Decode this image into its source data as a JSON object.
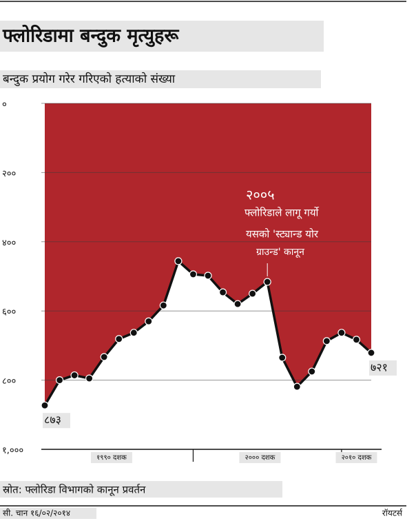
{
  "chart_data": {
    "type": "line",
    "title": "फ्लोरिडामा बन्दुक मृत्युहरू",
    "subtitle": "बन्दुक प्रयोग गरेर गरिएको हत्याको संख्या",
    "x": [
      1990,
      1991,
      1992,
      1993,
      1994,
      1995,
      1996,
      1997,
      1998,
      1999,
      2000,
      2001,
      2002,
      2003,
      2004,
      2005,
      2006,
      2007,
      2008,
      2009,
      2010,
      2011,
      2012
    ],
    "decade_labels": [
      "१९९० दशक",
      "२००० दशक",
      "२०१० दशक"
    ],
    "series": [
      {
        "name": "बन्दुक मृत्यु",
        "color": "#111111",
        "values": [
          873,
          800,
          786,
          795,
          733,
          681,
          663,
          630,
          584,
          456,
          494,
          498,
          546,
          580,
          550,
          516,
          735,
          819,
          775,
          687,
          663,
          683,
          721
        ],
        "value_labels": [
          "८७३",
          null,
          null,
          null,
          null,
          null,
          null,
          null,
          null,
          null,
          null,
          null,
          null,
          null,
          null,
          null,
          null,
          null,
          null,
          null,
          null,
          null,
          "७२१"
        ]
      }
    ],
    "area_color": "#b0262c",
    "ylim": [
      0,
      1000
    ],
    "y_inverted": true,
    "yticks": [
      {
        "value": 0,
        "label": "०"
      },
      {
        "value": 200,
        "label": "२००"
      },
      {
        "value": 400,
        "label": "४००"
      },
      {
        "value": 600,
        "label": "६००"
      },
      {
        "value": 800,
        "label": "८००"
      },
      {
        "value": 1000,
        "label": "१,०००"
      }
    ],
    "grid": true,
    "annotation": {
      "index": 15,
      "lines": [
        "२००५",
        "फ्लोरिडाले लागू गर्यो",
        "यसको 'स्ट्यान्ड योर",
        "ग्राउन्ड' कानून"
      ]
    },
    "source": "स्रोत: फ्लोरिडा विभागको कानून प्रवर्तन",
    "credit": "सी. चान १६/०२/२०१४",
    "publisher": "रॉयटर्स"
  }
}
